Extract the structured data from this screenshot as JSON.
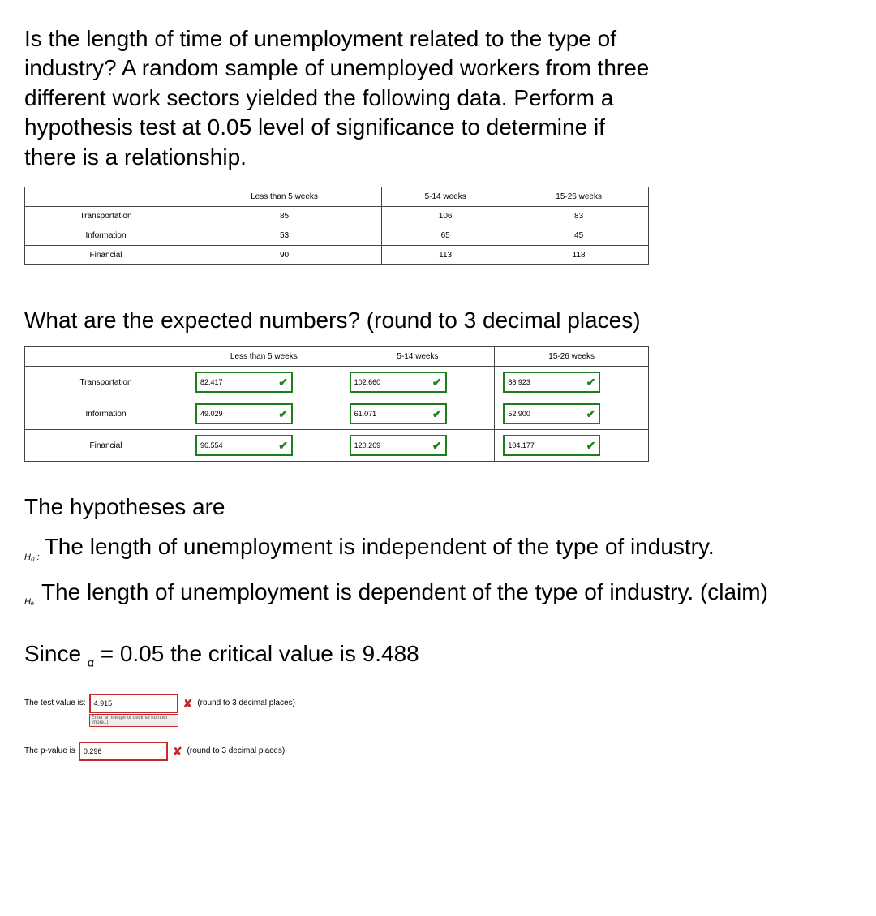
{
  "question_text": "Is the length of time of unemployment related to the type of industry? A random sample of unemployed workers from three different work sectors yielded the following data. Perform a hypothesis test at 0.05 level of significance to determine if there is a relationship.",
  "table1": {
    "col_headers": [
      "",
      "Less than 5 weeks",
      "5-14 weeks",
      "15-26 weeks"
    ],
    "rows": [
      {
        "label": "Transportation",
        "cells": [
          "85",
          "106",
          "83"
        ]
      },
      {
        "label": "Information",
        "cells": [
          "53",
          "65",
          "45"
        ]
      },
      {
        "label": "Financial",
        "cells": [
          "90",
          "113",
          "118"
        ]
      }
    ]
  },
  "expected_q": "What are the expected numbers? (round to 3 decimal places)",
  "table2": {
    "col_headers": [
      "",
      "Less than 5 weeks",
      "5-14 weeks",
      "15-26 weeks"
    ],
    "rows": [
      {
        "label": "Transportation",
        "cells": [
          "82.417",
          "102.660",
          "88.923"
        ]
      },
      {
        "label": "Information",
        "cells": [
          "49.029",
          "61.071",
          "52.900"
        ]
      },
      {
        "label": "Financial",
        "cells": [
          "96.554",
          "120.269",
          "104.177"
        ]
      }
    ],
    "cell_correct": true,
    "border_color": "#1a7f1a"
  },
  "hypotheses": {
    "title": "The hypotheses are",
    "h0_prefix": "H₀ :",
    "h0_text": "The length of unemployment is independent of the type of industry.",
    "ha_prefix": "Hₐ:",
    "ha_text": "The length of unemployment is dependent of the type of industry. (claim)"
  },
  "since_line_prefix": "Since ",
  "since_line_alpha": "α",
  "since_line_rest": " = 0.05 the critical value is 9.488",
  "test_value": {
    "label": "The test value is:",
    "value": "4.915",
    "hint": "Enter an integer or decimal number [more..]",
    "note": "(round to 3 decimal places)",
    "correct": false,
    "border_color": "#c62828"
  },
  "p_value": {
    "label": "The p-value is",
    "value": "0.296",
    "note": "(round to 3 decimal places)",
    "correct": false,
    "border_color": "#c62828"
  }
}
